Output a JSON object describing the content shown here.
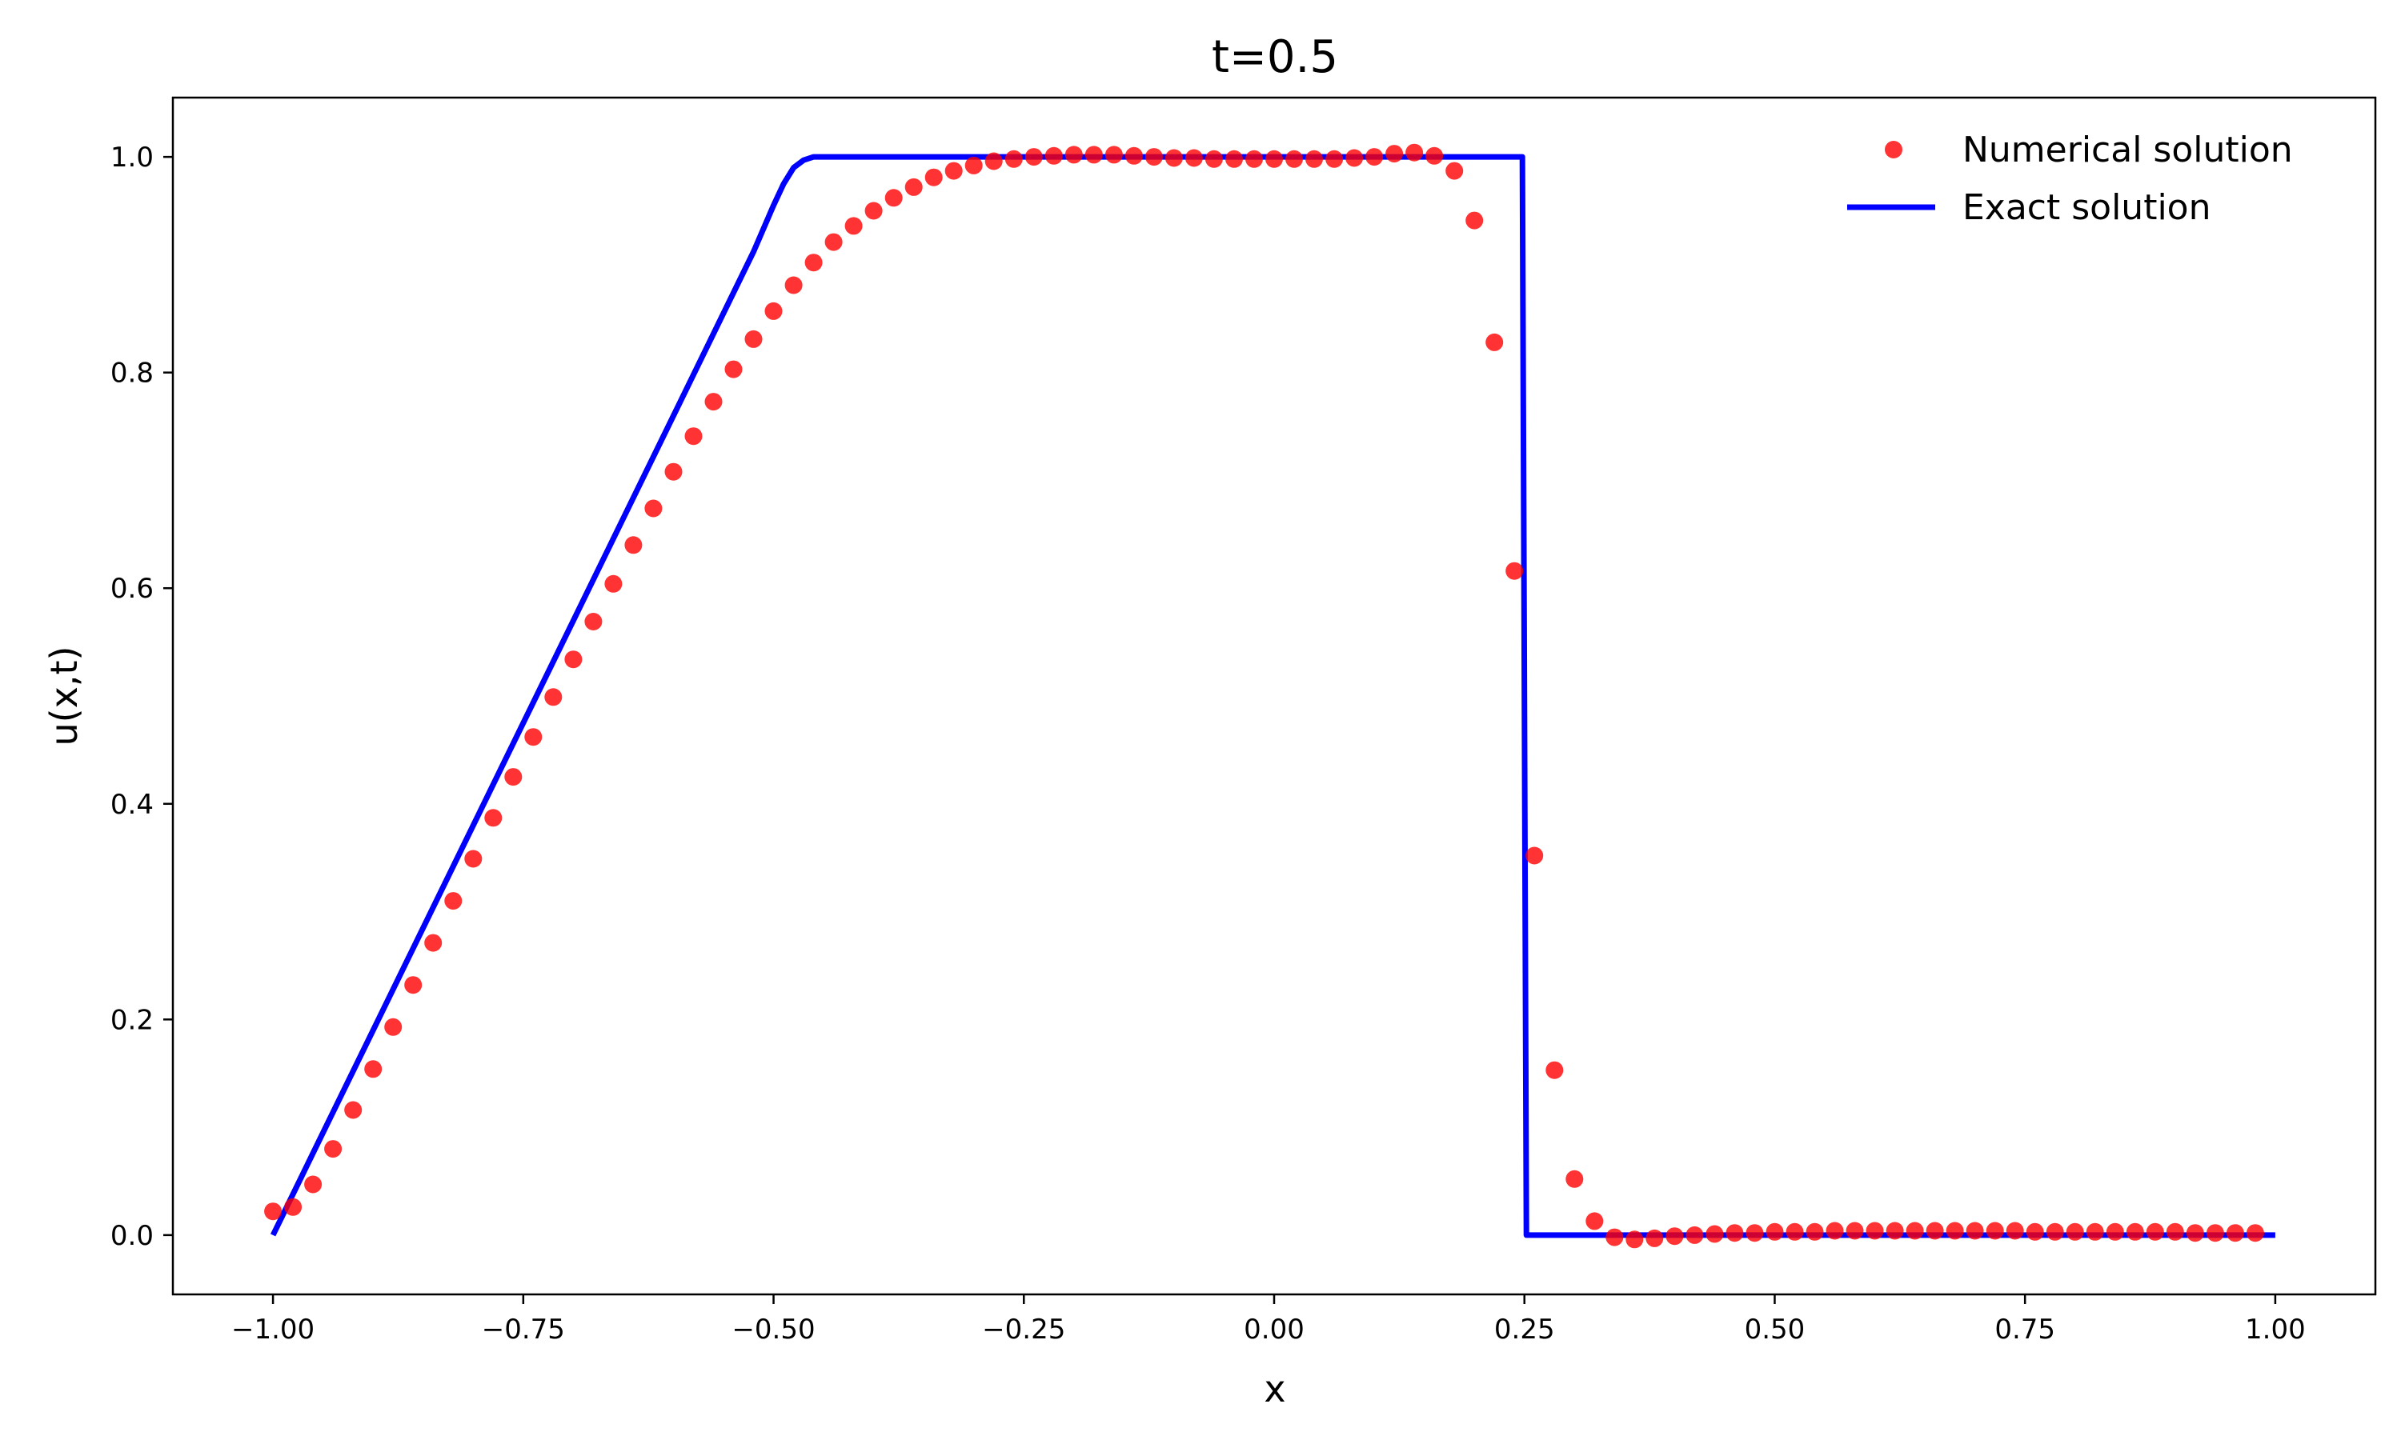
{
  "chart_data": {
    "type": "line",
    "title": "t=0.5",
    "xlabel": "x",
    "ylabel": "u(x,t)",
    "xlim": [
      -1.1,
      1.1
    ],
    "ylim": [
      -0.055,
      1.055
    ],
    "xticks": [
      -1.0,
      -0.75,
      -0.5,
      -0.25,
      0.0,
      0.25,
      0.5,
      0.75,
      1.0
    ],
    "xtick_labels": [
      "−1.00",
      "−0.75",
      "−0.50",
      "−0.25",
      "0.00",
      "0.25",
      "0.50",
      "0.75",
      "1.00"
    ],
    "yticks": [
      0.0,
      0.2,
      0.4,
      0.6,
      0.8,
      1.0
    ],
    "ytick_labels": [
      "0.0",
      "0.2",
      "0.4",
      "0.6",
      "0.8",
      "1.0"
    ],
    "grid": false,
    "legend_position": "top-right",
    "series": [
      {
        "name": "Numerical solution",
        "kind": "scatter",
        "color": "#ff0000",
        "x": [
          -1.0,
          -0.98,
          -0.96,
          -0.94,
          -0.92,
          -0.9,
          -0.88,
          -0.86,
          -0.84,
          -0.82,
          -0.8,
          -0.78,
          -0.76,
          -0.74,
          -0.72,
          -0.7,
          -0.68,
          -0.66,
          -0.64,
          -0.62,
          -0.6,
          -0.58,
          -0.56,
          -0.54,
          -0.52,
          -0.5,
          -0.48,
          -0.46,
          -0.44,
          -0.42,
          -0.4,
          -0.38,
          -0.36,
          -0.34,
          -0.32,
          -0.3,
          -0.28,
          -0.26,
          -0.24,
          -0.22,
          -0.2,
          -0.18,
          -0.16,
          -0.14,
          -0.12,
          -0.1,
          -0.08,
          -0.06,
          -0.04,
          -0.02,
          0.0,
          0.02,
          0.04,
          0.06,
          0.08,
          0.1,
          0.12,
          0.14,
          0.16,
          0.18,
          0.2,
          0.22,
          0.24,
          0.26,
          0.28,
          0.3,
          0.32,
          0.34,
          0.36,
          0.38,
          0.4,
          0.42,
          0.44,
          0.46,
          0.48,
          0.5,
          0.52,
          0.54,
          0.56,
          0.58,
          0.6,
          0.62,
          0.64,
          0.66,
          0.68,
          0.7,
          0.72,
          0.74,
          0.76,
          0.78,
          0.8,
          0.82,
          0.84,
          0.86,
          0.88,
          0.9,
          0.92,
          0.94,
          0.96,
          0.98
        ],
        "y": [
          0.022,
          0.026,
          0.047,
          0.08,
          0.116,
          0.154,
          0.193,
          0.232,
          0.271,
          0.31,
          0.349,
          0.387,
          0.425,
          0.462,
          0.499,
          0.534,
          0.569,
          0.604,
          0.64,
          0.674,
          0.708,
          0.741,
          0.773,
          0.803,
          0.831,
          0.857,
          0.881,
          0.902,
          0.921,
          0.936,
          0.95,
          0.962,
          0.972,
          0.981,
          0.987,
          0.992,
          0.996,
          0.998,
          1.0,
          1.001,
          1.002,
          1.002,
          1.002,
          1.001,
          1.0,
          0.999,
          0.999,
          0.998,
          0.998,
          0.998,
          0.998,
          0.998,
          0.998,
          0.998,
          0.999,
          1.0,
          1.003,
          1.004,
          1.001,
          0.987,
          0.941,
          0.828,
          0.616,
          0.352,
          0.153,
          0.052,
          0.013,
          -0.002,
          -0.004,
          -0.003,
          -0.001,
          0.0,
          0.001,
          0.002,
          0.002,
          0.003,
          0.003,
          0.003,
          0.004,
          0.004,
          0.004,
          0.004,
          0.004,
          0.004,
          0.004,
          0.004,
          0.004,
          0.004,
          0.003,
          0.003,
          0.003,
          0.003,
          0.003,
          0.003,
          0.003,
          0.003,
          0.002,
          0.002,
          0.002,
          0.002
        ]
      },
      {
        "name": "Exact solution",
        "kind": "line",
        "color": "#0000ff",
        "x": [
          -1.0,
          -0.98,
          -0.95,
          -0.9,
          -0.85,
          -0.8,
          -0.75,
          -0.7,
          -0.65,
          -0.6,
          -0.55,
          -0.52,
          -0.5,
          -0.49,
          -0.48,
          -0.47,
          -0.46,
          -0.45,
          0.0,
          0.248,
          0.25,
          0.252,
          1.0
        ],
        "y": [
          0.0,
          0.038,
          0.095,
          0.19,
          0.285,
          0.38,
          0.475,
          0.57,
          0.665,
          0.76,
          0.855,
          0.912,
          0.955,
          0.975,
          0.99,
          0.997,
          1.0,
          1.0,
          1.0,
          1.0,
          0.5,
          0.0,
          0.0
        ]
      }
    ]
  }
}
